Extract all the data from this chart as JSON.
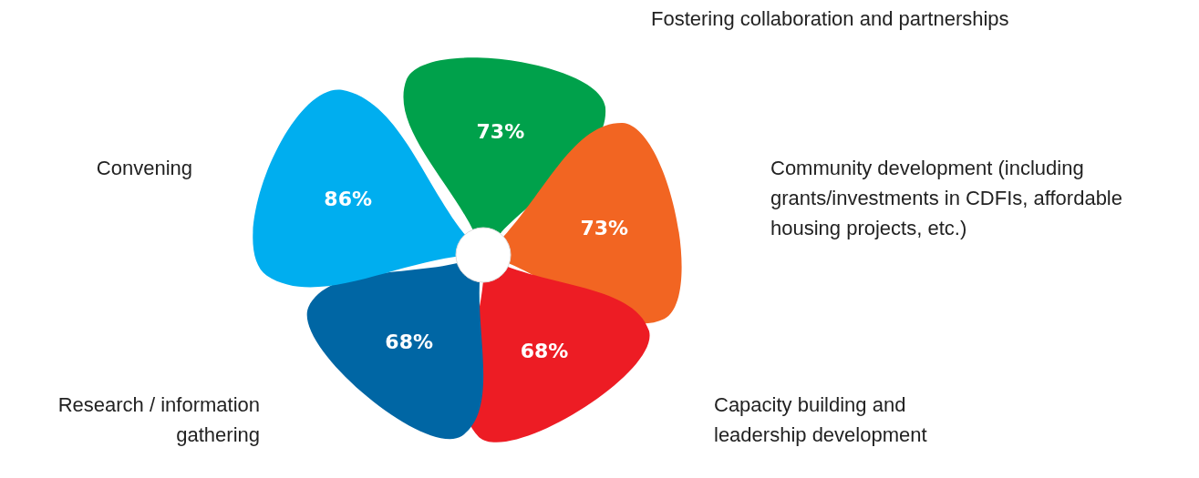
{
  "chart_data": {
    "type": "other",
    "categories": [
      "Fostering collaboration and partnerships",
      "Community development (including grants/investments in CDFIs, affordable housing projects, etc.)",
      "Capacity building and leadership development",
      "Research / information gathering",
      "Convening"
    ],
    "values": [
      73,
      73,
      68,
      68,
      86
    ],
    "value_labels": [
      "73%",
      "73%",
      "68%",
      "68%",
      "86%"
    ],
    "colors": [
      "#00a14b",
      "#f26522",
      "#ed1c24",
      "#0066a4",
      "#00aeef"
    ]
  }
}
